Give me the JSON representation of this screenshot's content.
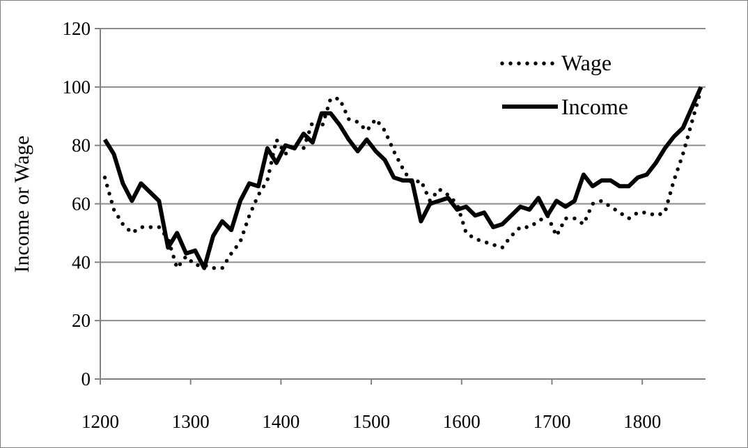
{
  "chart_data": {
    "type": "line",
    "title": "",
    "xlabel": "",
    "ylabel": "Income or Wage",
    "xlim": [
      1200,
      1870
    ],
    "ylim": [
      0,
      120
    ],
    "x_ticks": [
      1200,
      1300,
      1400,
      1500,
      1600,
      1700,
      1800
    ],
    "y_ticks": [
      0,
      20,
      40,
      60,
      80,
      100,
      120
    ],
    "grid": "horizontal",
    "legend_position": "top-right",
    "colors": {
      "wage": "#000000",
      "income": "#000000",
      "grid": "#8c8c8c",
      "axis": "#808080"
    },
    "series": [
      {
        "name": "Wage",
        "style": "dotted",
        "x": [
          1205,
          1215,
          1225,
          1235,
          1245,
          1255,
          1265,
          1275,
          1285,
          1295,
          1305,
          1315,
          1325,
          1335,
          1345,
          1355,
          1365,
          1375,
          1385,
          1395,
          1405,
          1415,
          1425,
          1435,
          1445,
          1455,
          1465,
          1475,
          1485,
          1495,
          1505,
          1515,
          1525,
          1535,
          1545,
          1555,
          1565,
          1575,
          1585,
          1595,
          1605,
          1615,
          1625,
          1635,
          1645,
          1655,
          1665,
          1675,
          1685,
          1695,
          1705,
          1715,
          1725,
          1735,
          1745,
          1755,
          1765,
          1775,
          1785,
          1795,
          1805,
          1815,
          1825,
          1835,
          1845,
          1855,
          1865
        ],
        "values": [
          69,
          58,
          53,
          50,
          52,
          52,
          52,
          48,
          38,
          42,
          39,
          39,
          38,
          38,
          43,
          47,
          56,
          63,
          68,
          82,
          77,
          81,
          79,
          88,
          86,
          96,
          96,
          89,
          88,
          85,
          89,
          85,
          78,
          72,
          67,
          68,
          61,
          65,
          63,
          60,
          50,
          48,
          47,
          46,
          45,
          49,
          52,
          52,
          54,
          56,
          49,
          55,
          55,
          53,
          60,
          61,
          59,
          57,
          55,
          57,
          57,
          56,
          57,
          68,
          77,
          88,
          99
        ]
      },
      {
        "name": "Income",
        "style": "solid",
        "x": [
          1205,
          1215,
          1225,
          1235,
          1245,
          1255,
          1265,
          1275,
          1285,
          1295,
          1305,
          1315,
          1325,
          1335,
          1345,
          1355,
          1365,
          1375,
          1385,
          1395,
          1405,
          1415,
          1425,
          1435,
          1445,
          1455,
          1465,
          1475,
          1485,
          1495,
          1505,
          1515,
          1525,
          1535,
          1545,
          1555,
          1565,
          1575,
          1585,
          1595,
          1605,
          1615,
          1625,
          1635,
          1645,
          1655,
          1665,
          1675,
          1685,
          1695,
          1705,
          1715,
          1725,
          1735,
          1745,
          1755,
          1765,
          1775,
          1785,
          1795,
          1805,
          1815,
          1825,
          1835,
          1845,
          1855,
          1865
        ],
        "values": [
          82,
          77,
          67,
          61,
          67,
          64,
          61,
          45,
          50,
          43,
          44,
          38,
          49,
          54,
          51,
          61,
          67,
          66,
          79,
          74,
          80,
          79,
          84,
          81,
          91,
          91,
          87,
          82,
          78,
          82,
          78,
          75,
          69,
          68,
          68,
          54,
          60,
          61,
          62,
          58,
          59,
          56,
          57,
          52,
          53,
          56,
          59,
          58,
          62,
          56,
          61,
          59,
          61,
          70,
          66,
          68,
          68,
          66,
          66,
          69,
          70,
          74,
          79,
          83,
          86,
          93,
          100
        ]
      }
    ]
  }
}
